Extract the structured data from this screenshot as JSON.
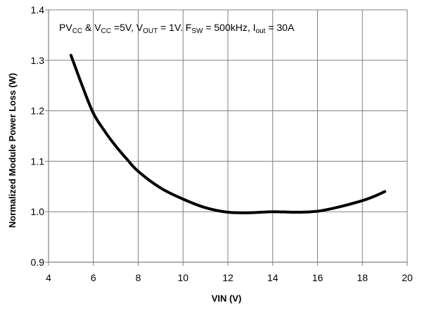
{
  "chart_data": {
    "type": "line",
    "xlabel": "VIN (V)",
    "ylabel": "Normalized Module Power Loss (W)",
    "xlim": [
      4,
      20
    ],
    "ylim": [
      0.9,
      1.4
    ],
    "x_ticks": [
      "4",
      "6",
      "8",
      "10",
      "12",
      "14",
      "16",
      "18",
      "20"
    ],
    "y_ticks": [
      "0.9",
      "1.0",
      "1.1",
      "1.2",
      "1.3",
      "1.4"
    ],
    "grid": true,
    "legend": "none",
    "annotation": {
      "parts": [
        {
          "text": "PV",
          "sub": false
        },
        {
          "text": "CC",
          "sub": true
        },
        {
          "text": " & V",
          "sub": false
        },
        {
          "text": "CC",
          "sub": true
        },
        {
          "text": " =5V, V",
          "sub": false
        },
        {
          "text": "OUT",
          "sub": true
        },
        {
          "text": " = 1V. F",
          "sub": false
        },
        {
          "text": "SW",
          "sub": true
        },
        {
          "text": " = 500kHz, I",
          "sub": false
        },
        {
          "text": "out",
          "sub": true
        },
        {
          "text": " = 30A",
          "sub": false
        }
      ]
    },
    "series": [
      {
        "color": "#000000",
        "x": [
          5,
          5.5,
          6,
          6.5,
          7,
          7.5,
          8,
          9,
          10,
          11,
          12,
          13,
          14,
          15,
          16,
          17,
          18,
          18.5,
          19
        ],
        "y": [
          1.31,
          1.25,
          1.195,
          1.16,
          1.13,
          1.104,
          1.08,
          1.047,
          1.025,
          1.008,
          0.999,
          0.998,
          1.0,
          0.999,
          1.001,
          1.01,
          1.022,
          1.03,
          1.04
        ]
      }
    ]
  },
  "colors": {
    "background": "#ffffff",
    "grid": "#808080",
    "axis": "#808080",
    "line": "#000000"
  }
}
